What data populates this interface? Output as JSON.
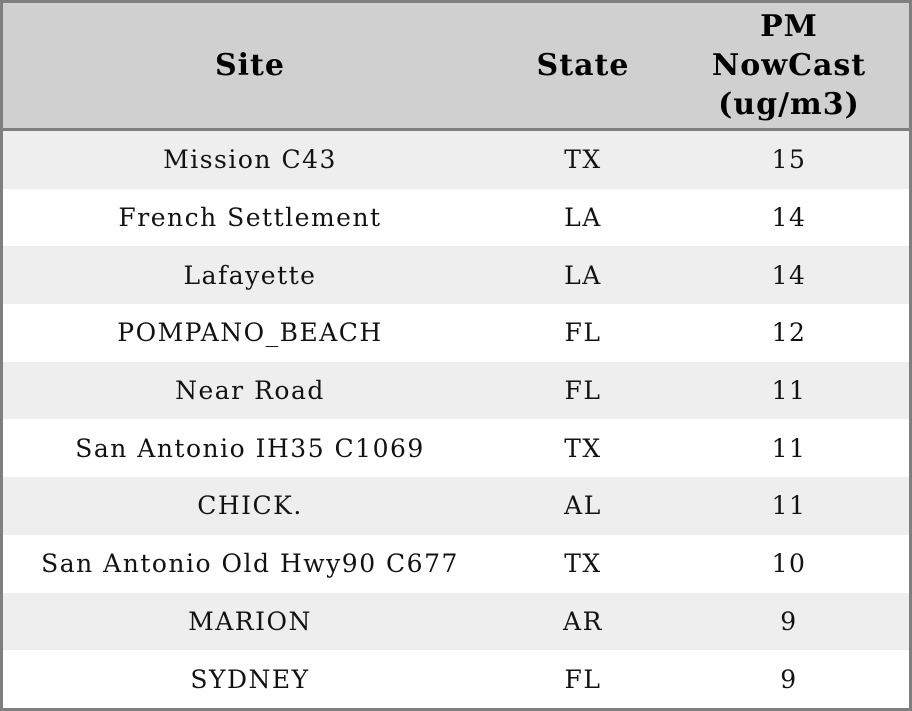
{
  "header": {
    "site": "Site",
    "state": "State",
    "pm": "PM\nNowCast\n(ug/m3)"
  },
  "rows": [
    {
      "site": "Mission C43",
      "state": "TX",
      "pm": "15"
    },
    {
      "site": "French Settlement",
      "state": "LA",
      "pm": "14"
    },
    {
      "site": "Lafayette",
      "state": "LA",
      "pm": "14"
    },
    {
      "site": "POMPANO_BEACH",
      "state": "FL",
      "pm": "12"
    },
    {
      "site": "Near Road",
      "state": "FL",
      "pm": "11"
    },
    {
      "site": "San Antonio IH35 C1069",
      "state": "TX",
      "pm": "11"
    },
    {
      "site": "CHICK.",
      "state": "AL",
      "pm": "11"
    },
    {
      "site": "San Antonio Old Hwy90 C677",
      "state": "TX",
      "pm": "10"
    },
    {
      "site": "MARION",
      "state": "AR",
      "pm": "9"
    },
    {
      "site": "SYDNEY",
      "state": "FL",
      "pm": "9"
    }
  ],
  "colors": {
    "header_bg": "#d0d0d0",
    "stripe_bg": "#eeeeee",
    "row_bg": "#ffffff",
    "border": "#7f7f7f",
    "text": "#121212"
  },
  "chart_data": {
    "type": "table",
    "title": "",
    "columns": [
      "Site",
      "State",
      "PM NowCast (ug/m3)"
    ],
    "rows": [
      [
        "Mission C43",
        "TX",
        15
      ],
      [
        "French Settlement",
        "LA",
        14
      ],
      [
        "Lafayette",
        "LA",
        14
      ],
      [
        "POMPANO_BEACH",
        "FL",
        12
      ],
      [
        "Near Road",
        "FL",
        11
      ],
      [
        "San Antonio IH35 C1069",
        "TX",
        11
      ],
      [
        "CHICK.",
        "AL",
        11
      ],
      [
        "San Antonio Old Hwy90 C677",
        "TX",
        10
      ],
      [
        "MARION",
        "AR",
        9
      ],
      [
        "SYDNEY",
        "FL",
        9
      ]
    ]
  }
}
